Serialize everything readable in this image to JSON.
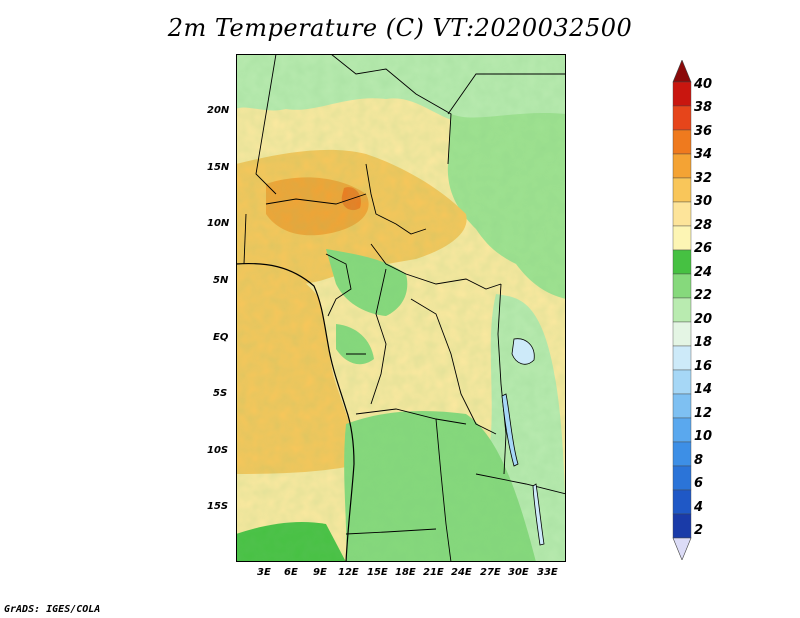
{
  "title": "2m Temperature (C) VT:2020032500",
  "credit": "GrADS: IGES/COLA",
  "lat_labels": [
    "20N",
    "15N",
    "10N",
    "5N",
    "EQ",
    "5S",
    "10S",
    "15S"
  ],
  "lon_labels": [
    "3E",
    "6E",
    "9E",
    "12E",
    "15E",
    "18E",
    "21E",
    "24E",
    "27E",
    "30E",
    "33E"
  ],
  "colorbar": {
    "levels": [
      "2",
      "4",
      "6",
      "8",
      "10",
      "12",
      "14",
      "16",
      "18",
      "20",
      "22",
      "24",
      "26",
      "28",
      "30",
      "32",
      "34",
      "36",
      "38",
      "40"
    ],
    "colors": [
      "#11137a",
      "#1a3ba8",
      "#1f58c6",
      "#2b74d8",
      "#3d8fe6",
      "#5aa8ee",
      "#7ec0f2",
      "#a6d7f6",
      "#cdeaf9",
      "#e4f5e4",
      "#b9ebb0",
      "#86d97c",
      "#46c142",
      "#fdf5b4",
      "#fde49a",
      "#f9c65a",
      "#f4a334",
      "#ef7a1e",
      "#e6451b",
      "#c9160f",
      "#8a0a0a"
    ],
    "low_end_color": "#dcdcf7",
    "high_end_color": "#8a0a0a"
  }
}
